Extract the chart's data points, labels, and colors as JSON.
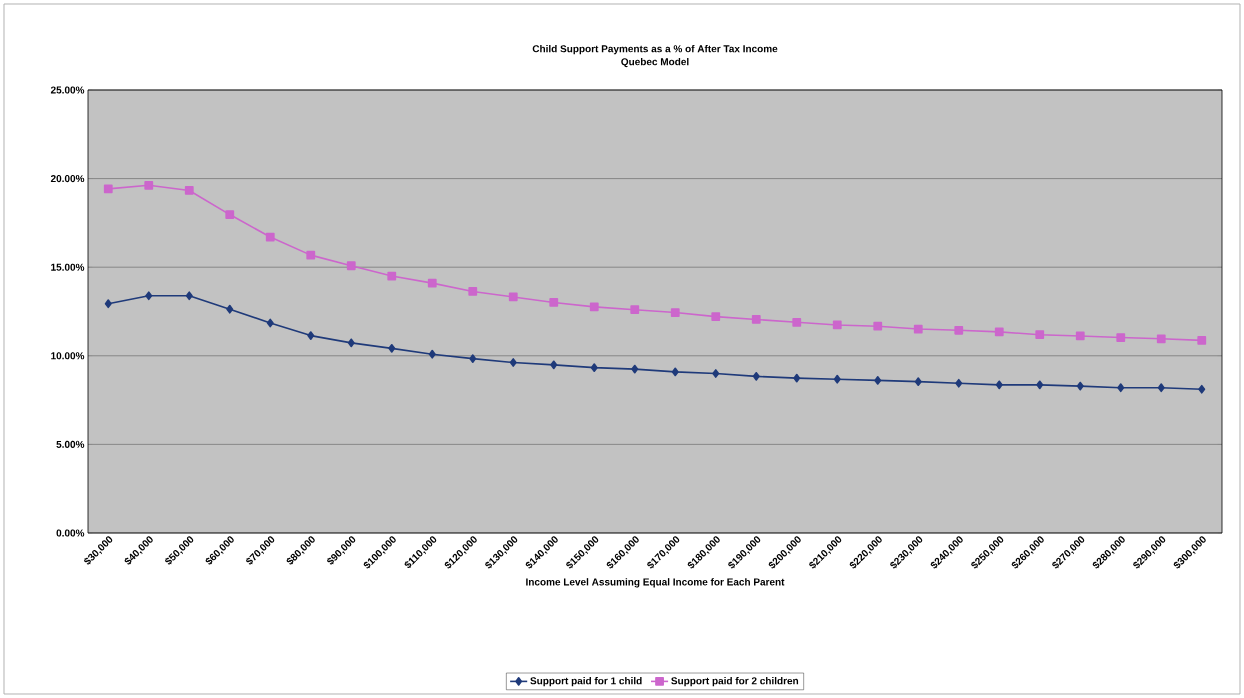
{
  "chart_data": {
    "type": "line",
    "title": "Child Support Payments as a % of After Tax Income",
    "subtitle": "Quebec Model",
    "xlabel": "Income Level Assuming Equal Income for Each Parent",
    "categories": [
      "$30,000",
      "$40,000",
      "$50,000",
      "$60,000",
      "$70,000",
      "$80,000",
      "$90,000",
      "$100,000",
      "$110,000",
      "$120,000",
      "$130,000",
      "$140,000",
      "$150,000",
      "$160,000",
      "$170,000",
      "$180,000",
      "$190,000",
      "$200,000",
      "$210,000",
      "$220,000",
      "$230,000",
      "$240,000",
      "$250,000",
      "$260,000",
      "$270,000",
      "$280,000",
      "$290,000",
      "$300,000"
    ],
    "series": [
      {
        "name": "Support paid  for 1 child",
        "color": "#1f3a7a",
        "marker": "diamond",
        "values": [
          12.94,
          13.39,
          13.39,
          12.63,
          11.85,
          11.14,
          10.73,
          10.42,
          10.09,
          9.84,
          9.62,
          9.49,
          9.33,
          9.25,
          9.09,
          9.0,
          8.84,
          8.74,
          8.68,
          8.61,
          8.54,
          8.45,
          8.36,
          8.36,
          8.29,
          8.2,
          8.2,
          8.11
        ]
      },
      {
        "name": "Support paid for 2 children",
        "color": "#cc66cc",
        "marker": "square",
        "values": [
          19.42,
          19.62,
          19.33,
          17.97,
          16.7,
          15.68,
          15.08,
          14.5,
          14.1,
          13.63,
          13.32,
          13.01,
          12.76,
          12.6,
          12.44,
          12.21,
          12.05,
          11.89,
          11.74,
          11.67,
          11.51,
          11.44,
          11.35,
          11.19,
          11.12,
          11.03,
          10.96,
          10.87
        ]
      }
    ],
    "ylim": [
      0,
      25
    ],
    "yticks": [
      {
        "value": 0,
        "label": "0.00%"
      },
      {
        "value": 5,
        "label": "5.00%"
      },
      {
        "value": 10,
        "label": "10.00%"
      },
      {
        "value": 15,
        "label": "15.00%"
      },
      {
        "value": 20,
        "label": "20.00%"
      },
      {
        "value": 25,
        "label": "25.00%"
      }
    ],
    "grid": "y",
    "legend": "bottom",
    "line_style": "solid"
  }
}
